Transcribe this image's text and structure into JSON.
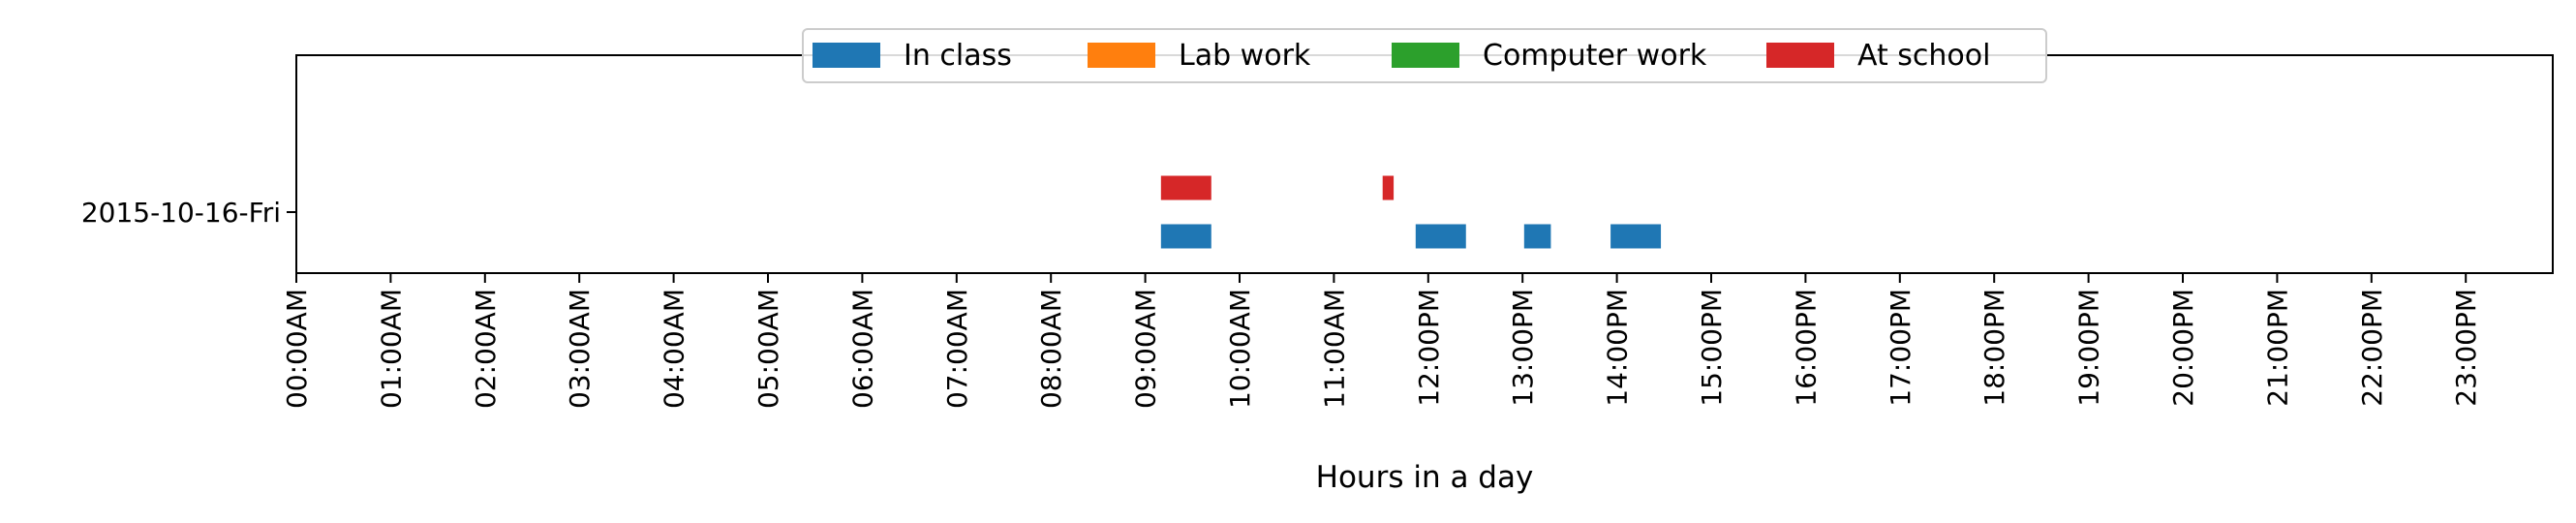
{
  "chart_data": {
    "type": "timeline",
    "title": "",
    "xlabel": "Hours in a day",
    "ylabel": "",
    "xlim_hours": [
      0,
      24
    ],
    "grid": false,
    "legend_placement": "upper center",
    "x_tick_labels": [
      "00:00AM",
      "01:00AM",
      "02:00AM",
      "03:00AM",
      "04:00AM",
      "05:00AM",
      "06:00AM",
      "07:00AM",
      "08:00AM",
      "09:00AM",
      "10:00AM",
      "11:00AM",
      "12:00PM",
      "13:00PM",
      "14:00PM",
      "15:00PM",
      "16:00PM",
      "17:00PM",
      "18:00PM",
      "19:00PM",
      "20:00PM",
      "21:00PM",
      "22:00PM",
      "23:00PM"
    ],
    "categories": [
      "2015-10-16-Fri"
    ],
    "series": [
      {
        "name": "In class",
        "color": "#1f77b4",
        "intervals": [
          {
            "day": "2015-10-16-Fri",
            "start": "09:10",
            "end": "09:42"
          },
          {
            "day": "2015-10-16-Fri",
            "start": "11:52",
            "end": "12:24"
          },
          {
            "day": "2015-10-16-Fri",
            "start": "13:01",
            "end": "13:18"
          },
          {
            "day": "2015-10-16-Fri",
            "start": "13:56",
            "end": "14:28"
          }
        ]
      },
      {
        "name": "Lab work",
        "color": "#ff7f0e",
        "intervals": []
      },
      {
        "name": "Computer work",
        "color": "#2ca02c",
        "intervals": []
      },
      {
        "name": "At school",
        "color": "#d62728",
        "intervals": [
          {
            "day": "2015-10-16-Fri",
            "start": "09:10",
            "end": "09:42"
          },
          {
            "day": "2015-10-16-Fri",
            "start": "11:31",
            "end": "11:38"
          }
        ]
      }
    ]
  }
}
